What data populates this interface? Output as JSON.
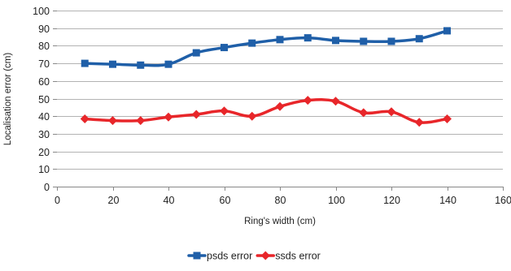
{
  "chart_data": {
    "type": "line",
    "title": "",
    "xlabel": "Ring's width (cm)",
    "ylabel": "Localisation error (cm)",
    "xlim": [
      0,
      160
    ],
    "ylim": [
      0,
      100
    ],
    "xticks": [
      0,
      20,
      40,
      60,
      80,
      100,
      120,
      140,
      160
    ],
    "yticks": [
      0,
      10,
      20,
      30,
      40,
      50,
      60,
      70,
      80,
      90,
      100
    ],
    "grid": "horizontal",
    "legend_position": "bottom",
    "x": [
      10,
      20,
      30,
      40,
      50,
      60,
      70,
      80,
      90,
      100,
      110,
      120,
      130,
      140
    ],
    "series": [
      {
        "name": "psds error",
        "color": "#1f5fa8",
        "marker": "square",
        "values": [
          70,
          69.5,
          69,
          69.5,
          76,
          79,
          81.5,
          83.5,
          84.5,
          83,
          82.5,
          82.5,
          84,
          88.5
        ]
      },
      {
        "name": "ssds error",
        "color": "#e8262a",
        "marker": "diamond",
        "values": [
          38.5,
          37.5,
          37.5,
          39.5,
          41,
          43,
          40,
          45.5,
          49,
          48.5,
          42,
          42.5,
          36.5,
          38.5
        ]
      }
    ]
  }
}
